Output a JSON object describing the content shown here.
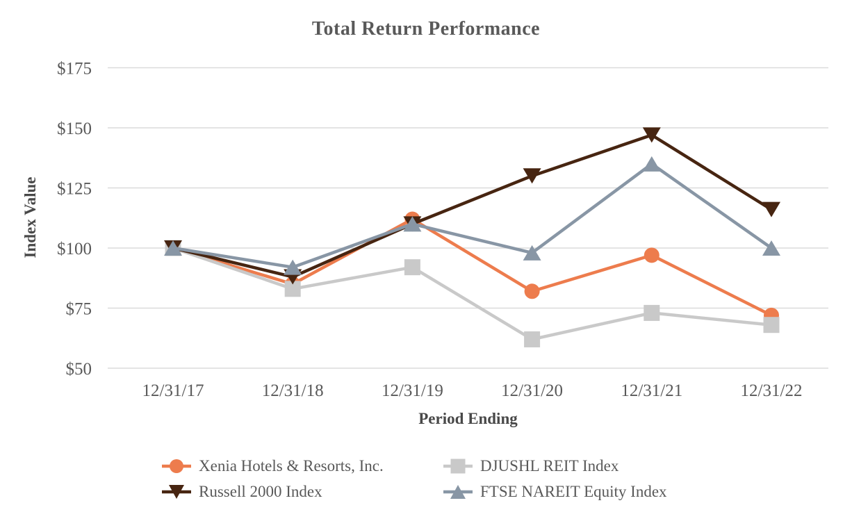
{
  "chart_data": {
    "type": "line",
    "title": "Total Return Performance",
    "xlabel": "Period Ending",
    "ylabel": "Index Value",
    "categories": [
      "12/31/17",
      "12/31/18",
      "12/31/19",
      "12/31/20",
      "12/31/21",
      "12/31/22"
    ],
    "ylim": [
      50,
      175
    ],
    "yticks": [
      {
        "value": 50,
        "label": "$50"
      },
      {
        "value": 75,
        "label": "$75"
      },
      {
        "value": 100,
        "label": "$100"
      },
      {
        "value": 125,
        "label": "$125"
      },
      {
        "value": 150,
        "label": "$150"
      },
      {
        "value": 175,
        "label": "$175"
      }
    ],
    "grid": true,
    "legend_position": "bottom",
    "series": [
      {
        "name": "Xenia Hotels & Resorts, Inc.",
        "marker": "circle",
        "color": "#ED7C4D",
        "values": [
          100,
          85,
          112,
          82,
          97,
          72
        ]
      },
      {
        "name": "DJUSHL REIT Index",
        "marker": "square",
        "color": "#C9C9C9",
        "values": [
          100,
          83,
          92,
          62,
          73,
          68
        ]
      },
      {
        "name": "Russell 2000 Index",
        "marker": "triangle-down",
        "color": "#472511",
        "values": [
          100,
          88,
          110,
          130,
          147,
          116
        ]
      },
      {
        "name": "FTSE NAREIT Equity Index",
        "marker": "triangle-up",
        "color": "#8896A5",
        "values": [
          100,
          92,
          110,
          98,
          135,
          100
        ]
      }
    ],
    "gridline_color": "#DBDBDB"
  }
}
